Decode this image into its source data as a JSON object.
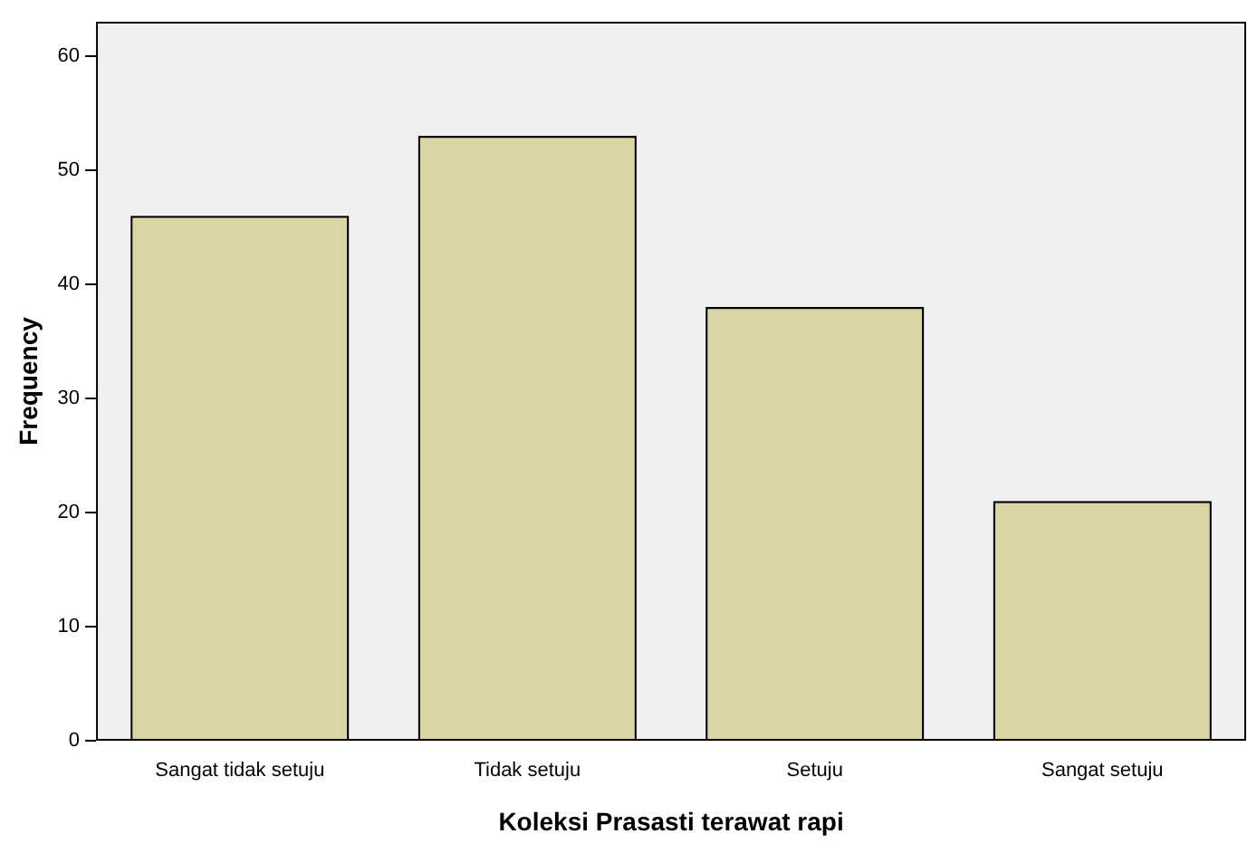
{
  "chart_data": {
    "type": "bar",
    "xlabel": "Koleksi Prasasti terawat rapi",
    "ylabel": "Frequency",
    "categories": [
      "Sangat tidak setuju",
      "Tidak setuju",
      "Setuju",
      "Sangat setuju"
    ],
    "values": [
      46,
      53,
      38,
      21
    ],
    "color": "#d9d5a5",
    "ylim": [
      0,
      63
    ],
    "yticks": [
      0,
      10,
      20,
      30,
      40,
      50,
      60
    ],
    "grid": false,
    "legend": false
  }
}
